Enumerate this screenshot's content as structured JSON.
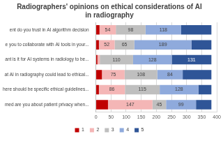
{
  "chart_data": {
    "type": "bar",
    "orientation": "horizontal",
    "stacked": true,
    "title": [
      "Radiographers' opinions on ethical considerations of AI",
      "in radiography"
    ],
    "categories": [
      "ent do you trust in AI algorithm decision",
      "e you to collaborate with AI tools in your...",
      "ant is it for AI systems in radiology to be...",
      "at AI in radiography could lead to ethical...",
      "here should be specific ethical guidelines...",
      "med are you about patient privacy when..."
    ],
    "series": [
      {
        "name": "1",
        "color": "#c00000",
        "values": [
          12,
          10,
          5,
          20,
          10,
          40
        ],
        "value_labels": [
          null,
          null,
          null,
          null,
          null,
          null
        ]
      },
      {
        "name": "2",
        "color": "#f4b6b6",
        "values": [
          54,
          52,
          8,
          75,
          86,
          147
        ],
        "value_labels": [
          "54",
          "52",
          null,
          "75",
          "86",
          "147"
        ]
      },
      {
        "name": "3",
        "color": "#bfbfbf",
        "values": [
          98,
          65,
          110,
          108,
          115,
          45
        ],
        "value_labels": [
          "98",
          "65",
          "110",
          "108",
          "115",
          "45"
        ]
      },
      {
        "name": "4",
        "color": "#8faadc",
        "values": [
          118,
          189,
          128,
          84,
          128,
          99
        ],
        "value_labels": [
          "118",
          "189",
          "128",
          "84",
          "128",
          "99"
        ]
      },
      {
        "name": "5",
        "color": "#2f5597",
        "values": [
          100,
          66,
          131,
          95,
          43,
          51
        ],
        "value_labels": [
          null,
          null,
          "131",
          null,
          null,
          null
        ]
      }
    ],
    "xlim": [
      0,
      400
    ],
    "xticks": [
      0,
      50,
      100,
      150,
      200,
      250,
      300,
      350,
      400
    ],
    "grid": true,
    "legend": "bottom",
    "data_labels": true
  }
}
